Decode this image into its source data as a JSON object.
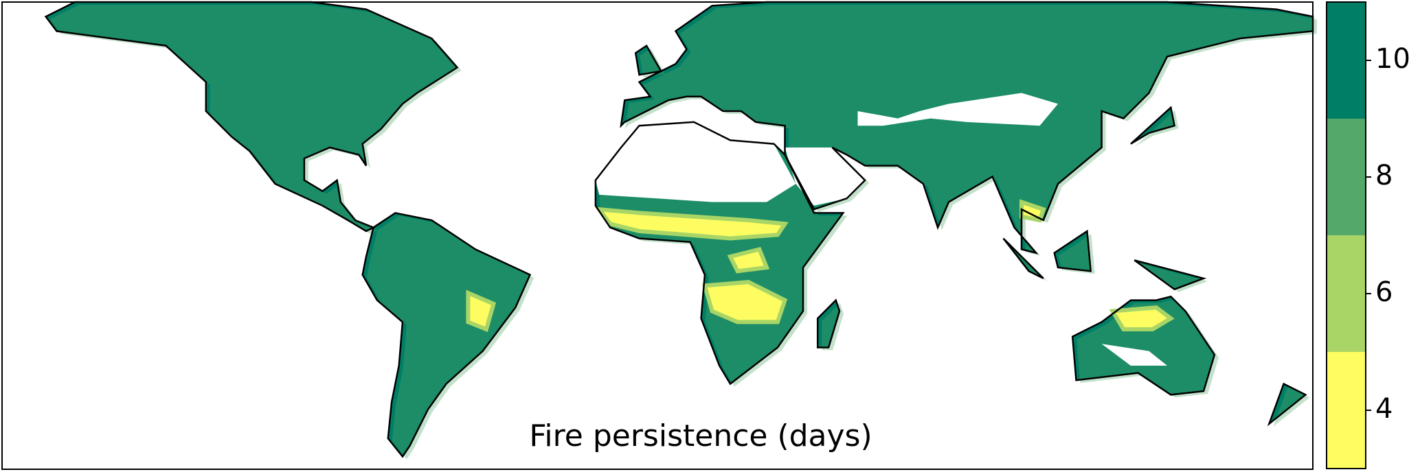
{
  "chart_data": {
    "type": "map",
    "title": "Fire persistence (days)",
    "colorbar": {
      "bounds": [
        3,
        5,
        7,
        9,
        11
      ],
      "colors": [
        "#fdfd62",
        "#a9d566",
        "#54a86a",
        "#007f66"
      ],
      "ticks": [
        4,
        6,
        8,
        10
      ]
    }
  }
}
